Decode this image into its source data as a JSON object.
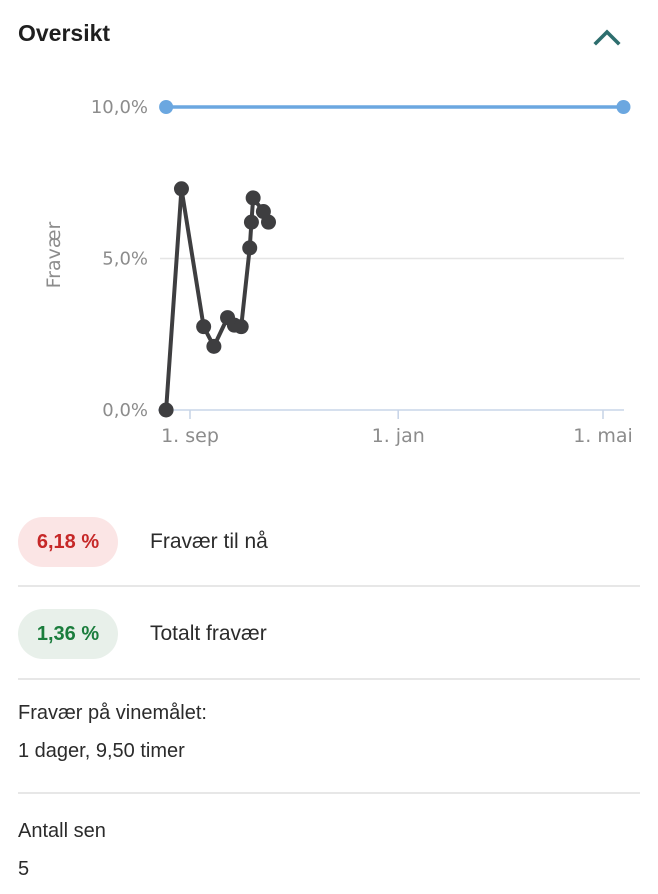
{
  "header": {
    "title": "Oversikt",
    "collapse_icon": "chevron-up"
  },
  "colors": {
    "accent_teal": "#2d6e6e",
    "limit_line_blue": "#6ba7e0",
    "series_dark": "#3e3e40",
    "axis_line": "#c9d5e8",
    "gridline": "#e5e5e5",
    "chart_label_gray": "#8c8c8c",
    "badge_red_bg": "#fbe5e5",
    "badge_red_text": "#c62828",
    "badge_green_bg": "#e8f0ea",
    "badge_green_text": "#1b7d3d"
  },
  "chart_data": {
    "type": "line",
    "title": "",
    "xlabel": "",
    "ylabel": "Fravær",
    "ylim": [
      0,
      10
    ],
    "grid": "horizontal-5%-only",
    "legend": "none",
    "x_ticks": [
      {
        "label": "1. sep",
        "days": 0
      },
      {
        "label": "1. jan",
        "days": 122
      },
      {
        "label": "1. mai",
        "days": 242
      }
    ],
    "y_ticks": [
      {
        "label": "10,0%",
        "pct": 10
      },
      {
        "label": "5,0%",
        "pct": 5,
        "gridline": true
      },
      {
        "label": "0,0%",
        "pct": 0
      }
    ],
    "series": [
      {
        "name": "Grense 10 %",
        "color": "#6ba7e0",
        "style": "horizontal limit line, round endpoint markers only",
        "marker_ends_only": true,
        "points": [
          {
            "days": -14,
            "pct": 10.0
          },
          {
            "days": 254,
            "pct": 10.0
          }
        ]
      },
      {
        "name": "Fravær",
        "color": "#3e3e40",
        "style": "line with circle markers",
        "marker_ends_only": false,
        "points": [
          {
            "days": -14,
            "pct": 0.0,
            "date_est": "18. aug"
          },
          {
            "days": -5,
            "pct": 7.3,
            "date_est": "27. aug"
          },
          {
            "days": 8,
            "pct": 2.75,
            "date_est": "9. sep"
          },
          {
            "days": 14,
            "pct": 2.1,
            "date_est": "15. sep"
          },
          {
            "days": 22,
            "pct": 3.05,
            "date_est": "23. sep"
          },
          {
            "days": 26,
            "pct": 2.8,
            "date_est": "27. sep"
          },
          {
            "days": 30,
            "pct": 2.75,
            "date_est": "1. okt"
          },
          {
            "days": 35,
            "pct": 5.35,
            "date_est": "6. okt"
          },
          {
            "days": 36,
            "pct": 6.2,
            "date_est": "7. okt"
          },
          {
            "days": 37,
            "pct": 7.0,
            "date_est": "8. okt"
          },
          {
            "days": 43,
            "pct": 6.55,
            "date_est": "14. okt"
          },
          {
            "days": 46,
            "pct": 6.2,
            "date_est": "17. okt"
          }
        ]
      }
    ]
  },
  "stats": {
    "items": [
      {
        "value": "6,18 %",
        "label": "Fravær til nå",
        "status": "red"
      },
      {
        "value": "1,36 %",
        "label": "Totalt fravær",
        "status": "green"
      }
    ]
  },
  "info": {
    "items": [
      {
        "line1": "Fravær på vinemålet:",
        "line2": "1 dager, 9,50 timer"
      },
      {
        "line1": "Antall sen",
        "line2": "5"
      }
    ]
  }
}
